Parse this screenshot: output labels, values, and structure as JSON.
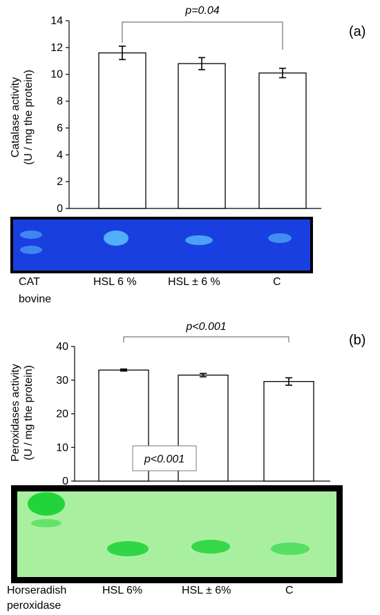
{
  "chart_data": [
    {
      "type": "bar",
      "panel_label": "(a)",
      "categories": [
        "",
        "",
        ""
      ],
      "values": [
        11.6,
        10.8,
        10.1
      ],
      "errors": [
        0.5,
        0.45,
        0.35
      ],
      "ylabel_lines": [
        "Catalase activity",
        "(U / mg the protein)"
      ],
      "yticks": [
        0,
        2,
        4,
        6,
        8,
        10,
        12,
        14
      ],
      "ylim": [
        0,
        14
      ],
      "comparison": {
        "from": 0,
        "to": 2,
        "label": "p=0.04"
      },
      "gel": {
        "lane_labels": [
          "CAT",
          "HSL 6 %",
          "HSL ± 6 %",
          "C"
        ],
        "lane_sublabels": [
          "bovine",
          "",
          "",
          ""
        ],
        "background": "#1a3fe0",
        "band_color": "#5cc3ff"
      }
    },
    {
      "type": "bar",
      "panel_label": "(b)",
      "categories": [
        "",
        "",
        ""
      ],
      "values": [
        33.0,
        31.5,
        29.6
      ],
      "errors": [
        0.3,
        0.5,
        1.1
      ],
      "ylabel_lines": [
        "Peroxidases activity",
        "(U / mg the protein)"
      ],
      "yticks": [
        0,
        10,
        20,
        30,
        40
      ],
      "ylim": [
        0,
        40
      ],
      "comparison": {
        "from": 0,
        "to": 2,
        "label": "p<0.001"
      },
      "boxed_annotation": "p<0.001",
      "gel": {
        "lane_labels": [
          "Horseradish",
          "HSL 6%",
          "HSL ± 6%",
          "C"
        ],
        "lane_sublabels": [
          "peroxidase",
          "",
          "",
          ""
        ],
        "background": "#a8f0a0",
        "band_color": "#22d43a"
      }
    }
  ]
}
